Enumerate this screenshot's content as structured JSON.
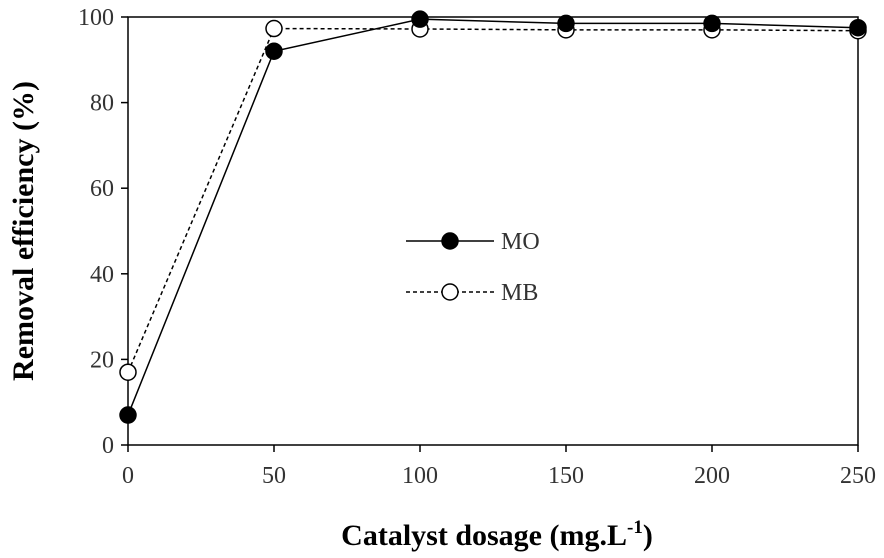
{
  "chart_data": {
    "type": "line",
    "x": [
      0,
      50,
      100,
      150,
      200,
      250
    ],
    "series": [
      {
        "name": "MO",
        "values": [
          7,
          92,
          99.5,
          98.5,
          98.5,
          97.5
        ],
        "marker": "filled-circle",
        "line": "solid",
        "color": "#000000"
      },
      {
        "name": "MB",
        "values": [
          17,
          97.3,
          97.2,
          97,
          97,
          96.8
        ],
        "marker": "open-circle",
        "line": "dashed",
        "color": "#000000"
      }
    ],
    "xlabel": "Catalyst dosage (mg.L",
    "xlabel_sup": "-1",
    "xlabel_close": ")",
    "ylabel": "Removal efficiency (%)",
    "xlim": [
      0,
      250
    ],
    "ylim": [
      0,
      100
    ],
    "xticks": [
      "0",
      "50",
      "100",
      "150",
      "200",
      "250"
    ],
    "yticks": [
      "0",
      "20",
      "40",
      "60",
      "80",
      "100"
    ],
    "grid": false,
    "legend_position": "center"
  }
}
